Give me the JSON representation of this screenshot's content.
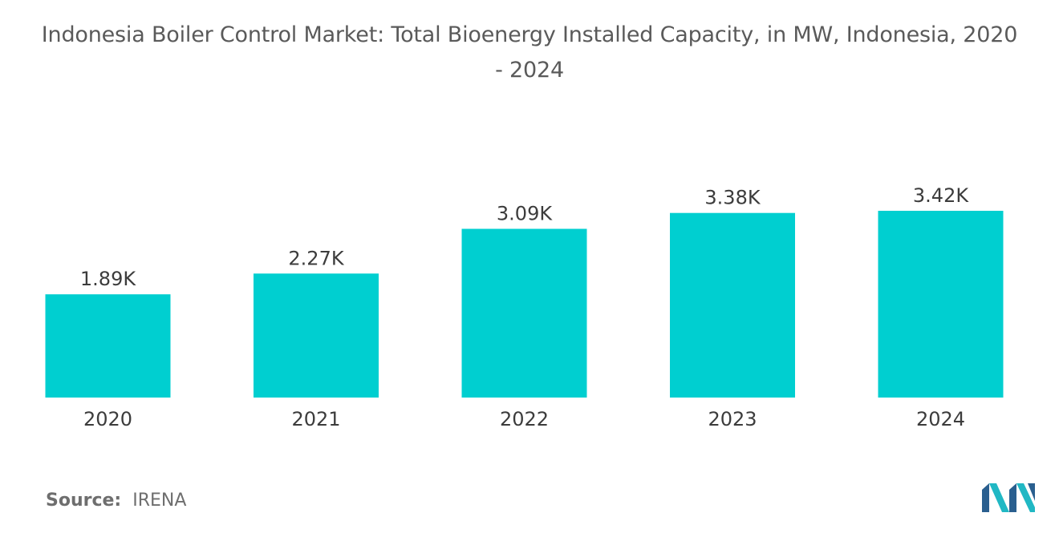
{
  "title_line1": "Indonesia Boiler Control Market: Total Bioenergy Installed Capacity, in MW, Indonesia, 2020",
  "title_line2": "- 2024",
  "source_label": "Source:",
  "source_value": "IRENA",
  "colors": {
    "bar": "#00cfd0",
    "text": "#3c3c3c",
    "title": "#5a5a5a",
    "logo_dark": "#2a5f8f",
    "logo_teal": "#21b8c4"
  },
  "chart_data": {
    "type": "bar",
    "title": "Indonesia Boiler Control Market: Total Bioenergy Installed Capacity, in MW, Indonesia, 2020 - 2024",
    "xlabel": "",
    "ylabel": "",
    "grid": false,
    "categories": [
      "2020",
      "2021",
      "2022",
      "2023",
      "2024"
    ],
    "values": [
      1890,
      2270,
      3090,
      3380,
      3420
    ],
    "value_labels": [
      "1.89K",
      "2.27K",
      "3.09K",
      "3.38K",
      "3.42K"
    ],
    "ylim": [
      0,
      3420
    ]
  }
}
